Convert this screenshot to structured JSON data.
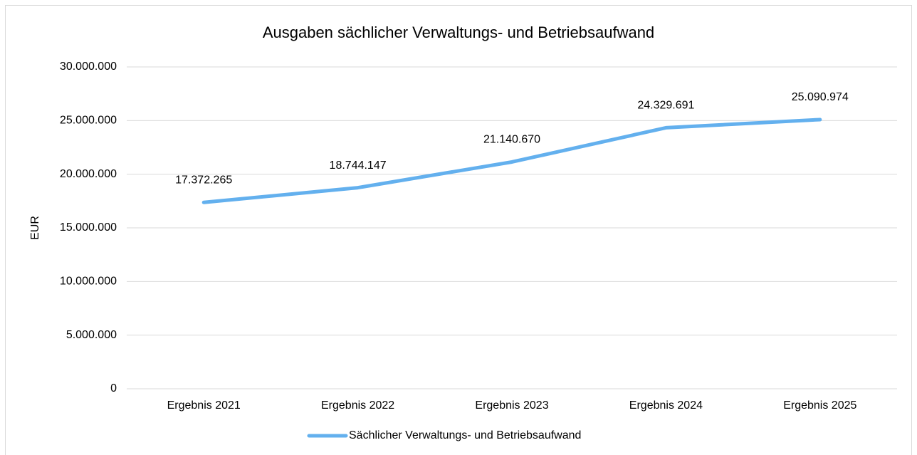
{
  "chart_data": {
    "type": "line",
    "title": "Ausgaben sächlicher Verwaltungs- und Betriebsaufwand",
    "y_label": "EUR",
    "categories": [
      "Ergebnis 2021",
      "Ergebnis 2022",
      "Ergebnis 2023",
      "Ergebnis 2024",
      "Ergebnis 2025"
    ],
    "series": [
      {
        "name": "Sächlicher Verwaltungs- und Betriebsaufwand",
        "color": "#63b0ee",
        "values": [
          17372265,
          18744147,
          21140670,
          24329691,
          25090974
        ],
        "value_labels": [
          "17.372.265",
          "18.744.147",
          "21.140.670",
          "24.329.691",
          "25.090.974"
        ]
      }
    ],
    "ylim": [
      0,
      30000000
    ],
    "yticks": [
      0,
      {
        "value": 5000000,
        "label": "5.000.000"
      },
      {
        "value": 10000000,
        "label": "10.000.000"
      },
      {
        "value": 15000000,
        "label": "15.000.000"
      },
      {
        "value": 20000000,
        "label": "20.000.000"
      },
      {
        "value": 25000000,
        "label": "25.000.000"
      },
      {
        "value": 30000000,
        "label": "30.000.000"
      }
    ],
    "grid": true,
    "legend": "bottom"
  }
}
